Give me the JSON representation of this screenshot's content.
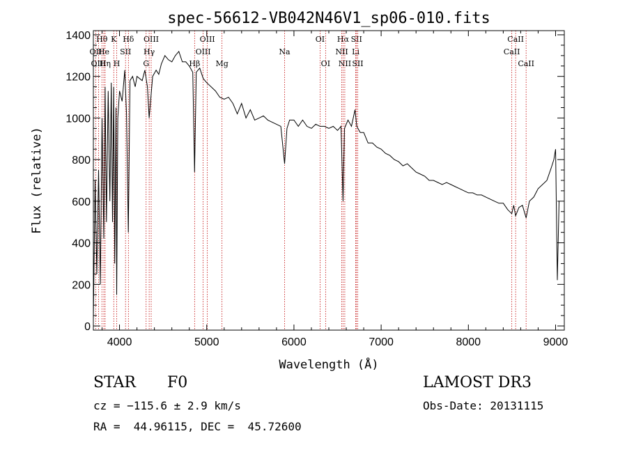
{
  "chart_data": {
    "type": "line",
    "title": "spec-56612-VB042N46V1_sp06-010.fits",
    "xlabel": "Wavelength (Å)",
    "ylabel": "Flux (relative)",
    "xlim": [
      3700,
      9100
    ],
    "ylim": [
      -20,
      1420
    ],
    "x_ticks": [
      4000,
      5000,
      6000,
      7000,
      8000,
      9000
    ],
    "y_ticks": [
      0,
      200,
      400,
      600,
      800,
      1000,
      1200,
      1400
    ],
    "grid": false,
    "series": [
      {
        "name": "spectrum",
        "x": [
          3700,
          3720,
          3740,
          3760,
          3780,
          3800,
          3820,
          3835,
          3850,
          3870,
          3889,
          3905,
          3920,
          3933,
          3945,
          3960,
          3968,
          3980,
          4000,
          4030,
          4060,
          4080,
          4101,
          4120,
          4150,
          4180,
          4200,
          4230,
          4260,
          4290,
          4320,
          4340,
          4360,
          4380,
          4420,
          4450,
          4480,
          4520,
          4560,
          4600,
          4640,
          4680,
          4720,
          4760,
          4800,
          4840,
          4861,
          4880,
          4920,
          4960,
          5000,
          5050,
          5100,
          5150,
          5200,
          5250,
          5300,
          5350,
          5400,
          5450,
          5500,
          5550,
          5600,
          5650,
          5700,
          5750,
          5800,
          5850,
          5893,
          5920,
          5950,
          6000,
          6050,
          6100,
          6150,
          6200,
          6250,
          6300,
          6350,
          6400,
          6450,
          6500,
          6540,
          6563,
          6580,
          6620,
          6660,
          6700,
          6720,
          6760,
          6800,
          6850,
          6900,
          6950,
          7000,
          7050,
          7100,
          7150,
          7200,
          7250,
          7300,
          7350,
          7400,
          7450,
          7500,
          7550,
          7600,
          7650,
          7700,
          7750,
          7800,
          7850,
          7900,
          7950,
          8000,
          8050,
          8100,
          8150,
          8200,
          8250,
          8300,
          8350,
          8400,
          8450,
          8498,
          8520,
          8542,
          8580,
          8620,
          8662,
          8700,
          8750,
          8800,
          8850,
          8900,
          8950,
          8980,
          9000,
          9020,
          9040
        ],
        "y": [
          30,
          700,
          250,
          750,
          200,
          1000,
          420,
          1150,
          500,
          1130,
          600,
          1170,
          500,
          1150,
          300,
          1050,
          150,
          1000,
          1130,
          1080,
          1230,
          1020,
          450,
          1180,
          1200,
          1150,
          1200,
          1190,
          1180,
          1230,
          1150,
          1000,
          1100,
          1200,
          1230,
          1210,
          1260,
          1300,
          1280,
          1270,
          1300,
          1320,
          1270,
          1270,
          1250,
          1220,
          740,
          1220,
          1240,
          1190,
          1170,
          1150,
          1130,
          1100,
          1090,
          1100,
          1070,
          1020,
          1070,
          1000,
          1040,
          990,
          1000,
          1010,
          990,
          980,
          970,
          960,
          780,
          950,
          990,
          990,
          960,
          990,
          960,
          950,
          970,
          960,
          960,
          950,
          960,
          940,
          960,
          600,
          950,
          990,
          960,
          1040,
          960,
          930,
          930,
          880,
          880,
          860,
          850,
          830,
          820,
          800,
          790,
          770,
          780,
          760,
          740,
          730,
          720,
          700,
          700,
          690,
          680,
          690,
          680,
          670,
          660,
          650,
          640,
          640,
          630,
          630,
          620,
          610,
          600,
          590,
          590,
          560,
          540,
          580,
          530,
          570,
          580,
          520,
          600,
          620,
          660,
          680,
          700,
          760,
          800,
          850,
          220,
          600
        ]
      }
    ],
    "line_markers": [
      {
        "label": "Hθ",
        "wavelength": 3798,
        "row": 0
      },
      {
        "label": "OII",
        "wavelength": 3727,
        "row": 1
      },
      {
        "label": "OIII",
        "wavelength": 3760,
        "row": 2
      },
      {
        "label": "He",
        "wavelength": 3820,
        "row": 1
      },
      {
        "label": "Hη",
        "wavelength": 3835,
        "row": 2
      },
      {
        "label": "K",
        "wavelength": 3934,
        "row": 0
      },
      {
        "label": "SII",
        "wavelength": 4069,
        "row": 1
      },
      {
        "label": "H",
        "wavelength": 3968,
        "row": 2
      },
      {
        "label": "Hδ",
        "wavelength": 4102,
        "row": 0
      },
      {
        "label": "OIII",
        "wavelength": 4363,
        "row": 0
      },
      {
        "label": "Hγ",
        "wavelength": 4340,
        "row": 1
      },
      {
        "label": "G",
        "wavelength": 4305,
        "row": 2
      },
      {
        "label": "OIII",
        "wavelength": 5007,
        "row": 0
      },
      {
        "label": "OIII",
        "wavelength": 4959,
        "row": 1
      },
      {
        "label": "Hβ",
        "wavelength": 4861,
        "row": 2
      },
      {
        "label": "Mg",
        "wavelength": 5175,
        "row": 2
      },
      {
        "label": "Na",
        "wavelength": 5893,
        "row": 1
      },
      {
        "label": "OI",
        "wavelength": 6300,
        "row": 0
      },
      {
        "label": "OI",
        "wavelength": 6363,
        "row": 2
      },
      {
        "label": "Hα",
        "wavelength": 6563,
        "row": 0
      },
      {
        "label": "NII",
        "wavelength": 6548,
        "row": 1
      },
      {
        "label": "NII",
        "wavelength": 6583,
        "row": 2
      },
      {
        "label": "SII",
        "wavelength": 6717,
        "row": 0
      },
      {
        "label": "Li",
        "wavelength": 6708,
        "row": 1
      },
      {
        "label": "SII",
        "wavelength": 6731,
        "row": 2
      },
      {
        "label": "CaII",
        "wavelength": 8542,
        "row": 0
      },
      {
        "label": "CaII",
        "wavelength": 8498,
        "row": 1
      },
      {
        "label": "CaII",
        "wavelength": 8662,
        "row": 2
      }
    ]
  },
  "info": {
    "class_label": "STAR",
    "subclass": "F0",
    "survey": "LAMOST DR3",
    "cz": "cz = −115.6 ± 2.9 km/s",
    "obs_date": "Obs-Date: 20131115",
    "coords": "RA =  44.96115, DEC =  45.72600"
  },
  "colors": {
    "spectrum": "#000000",
    "marker": "#c00000",
    "axis": "#000000"
  }
}
